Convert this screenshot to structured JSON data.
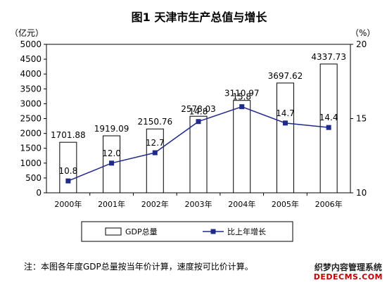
{
  "chart_data": {
    "type": "bar+line",
    "title": "图1 天津市生产总值与增长",
    "categories": [
      "2000年",
      "2001年",
      "2002年",
      "2003年",
      "2004年",
      "2005年",
      "2006年"
    ],
    "series": [
      {
        "name": "GDP总量",
        "type": "bar",
        "axis": "left",
        "values": [
          1701.88,
          1919.09,
          2150.76,
          2578.03,
          3110.97,
          3697.62,
          4337.73
        ],
        "labels": [
          "1701.88",
          "1919.09",
          "2150.76",
          "2578.03",
          "3110.97",
          "3697.62",
          "4337.73"
        ],
        "fill": "#ffffff",
        "stroke": "#000000"
      },
      {
        "name": "比上年增长",
        "type": "line",
        "axis": "right",
        "values": [
          10.8,
          12.0,
          12.7,
          14.8,
          15.8,
          14.7,
          14.4
        ],
        "labels": [
          "10.8",
          "12.0",
          "12.7",
          "14.8",
          "15.8",
          "14.7",
          "14.4"
        ],
        "color": "#1f2a8c"
      }
    ],
    "left_axis": {
      "unit": "（亿元）",
      "min": 0,
      "max": 5000,
      "step": 500,
      "ticks": [
        "0",
        "500",
        "1000",
        "1500",
        "2000",
        "2500",
        "3000",
        "3500",
        "4000",
        "4500",
        "5000"
      ]
    },
    "right_axis": {
      "unit": "（%）",
      "min": 10,
      "max": 20,
      "ticks": [
        "10",
        "15",
        "20"
      ]
    },
    "legend_position": "bottom",
    "background": "#ffffff"
  },
  "note": "注：本图各年度GDP总量按当年价计算，速度按可比价计算。",
  "watermark": {
    "line1": "织梦内容管理系统",
    "line2": "DEDECMS.COM"
  }
}
